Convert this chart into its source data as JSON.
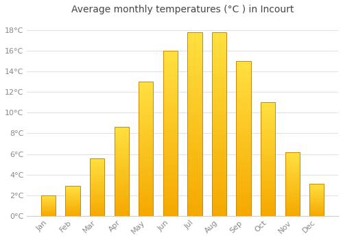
{
  "title": "Average monthly temperatures (°C ) in Incourt",
  "months": [
    "Jan",
    "Feb",
    "Mar",
    "Apr",
    "May",
    "Jun",
    "Jul",
    "Aug",
    "Sep",
    "Oct",
    "Nov",
    "Dec"
  ],
  "values": [
    2.0,
    2.9,
    5.6,
    8.6,
    13.0,
    16.0,
    17.8,
    17.8,
    15.0,
    11.0,
    6.2,
    3.1
  ],
  "bar_color_bottom": "#F5A800",
  "bar_color_top": "#FFE040",
  "bar_edge_color": "#C8880A",
  "ylim": [
    0,
    19
  ],
  "yticks": [
    0,
    2,
    4,
    6,
    8,
    10,
    12,
    14,
    16,
    18
  ],
  "ytick_labels": [
    "0°C",
    "2°C",
    "4°C",
    "6°C",
    "8°C",
    "10°C",
    "12°C",
    "14°C",
    "16°C",
    "18°C"
  ],
  "background_color": "#ffffff",
  "grid_color": "#e0e0e8",
  "title_fontsize": 10,
  "tick_fontsize": 8,
  "tick_color": "#888888",
  "title_color": "#444444",
  "bar_width": 0.6
}
